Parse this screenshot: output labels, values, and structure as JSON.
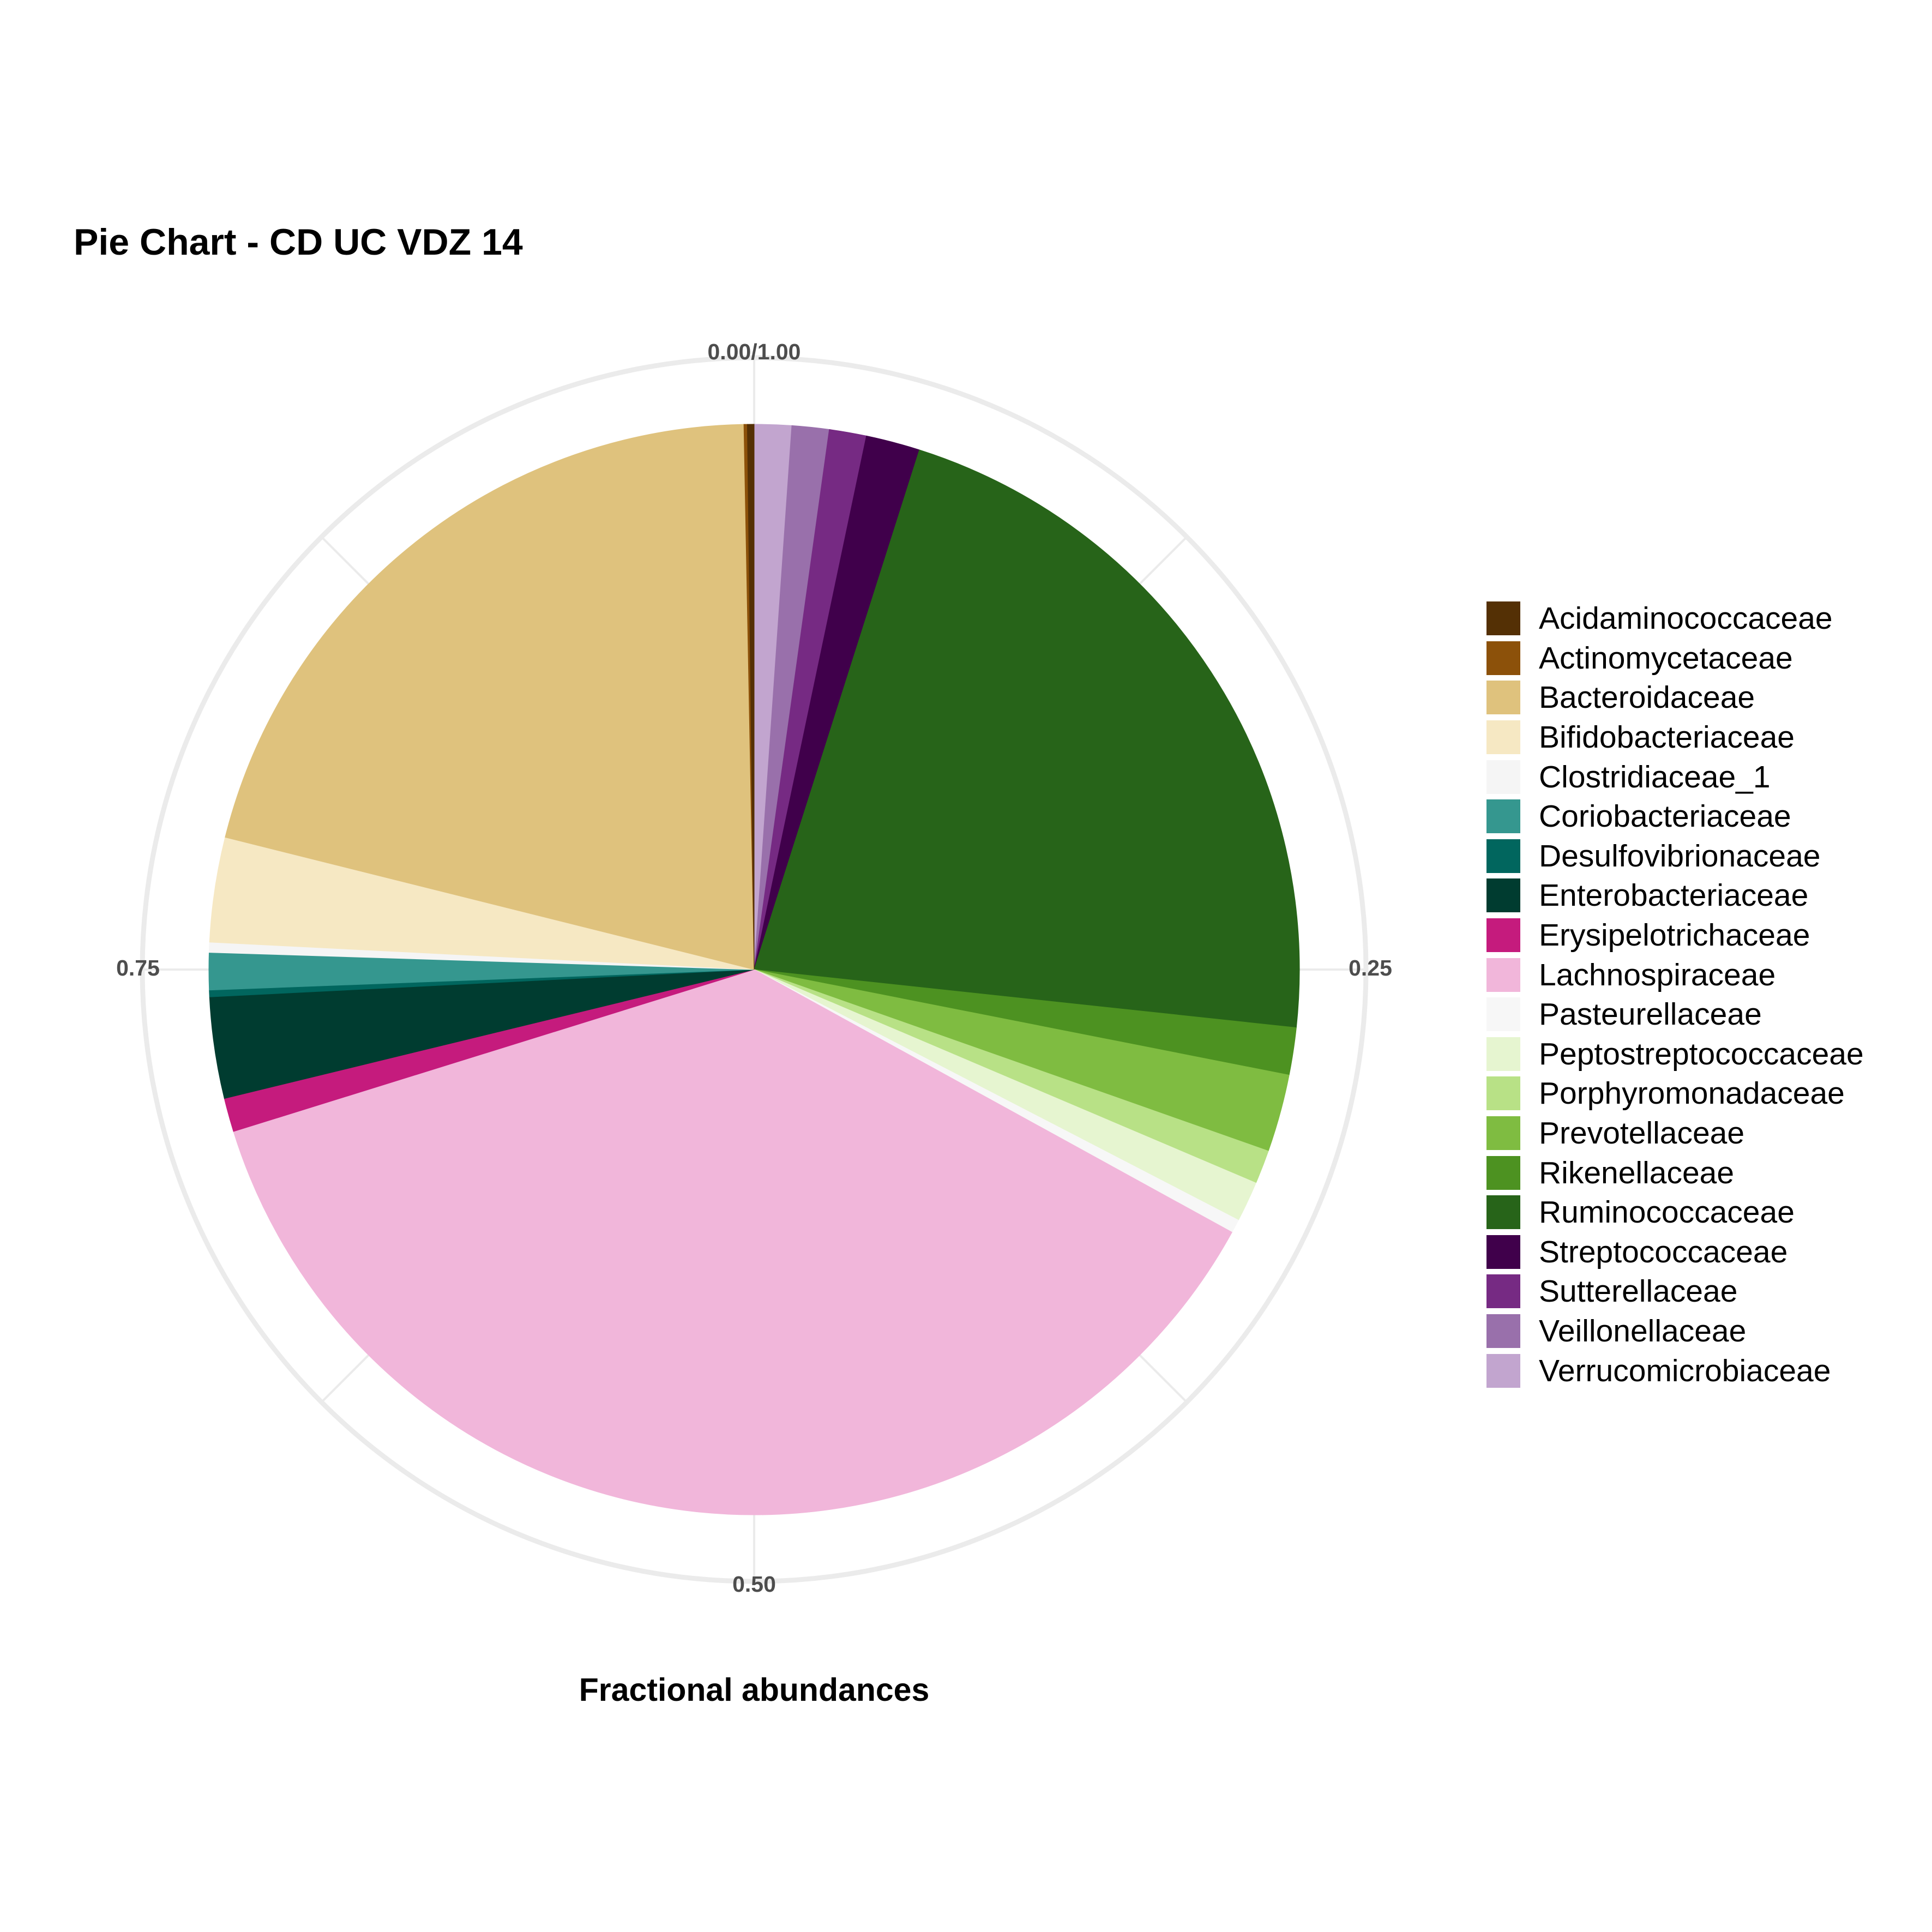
{
  "chart_data": {
    "type": "pie",
    "title": "Pie Chart - CD UC VDZ 14",
    "xlabel": "Fractional abundances",
    "ticks": [
      {
        "value": 0,
        "label": "0.00/1.00"
      },
      {
        "value": 0.25,
        "label": "0.25"
      },
      {
        "value": 0.5,
        "label": "0.50"
      },
      {
        "value": 0.75,
        "label": "0.75"
      }
    ],
    "legend_position": "right",
    "grid": true,
    "slices": [
      {
        "name": "Verrucomicrobiaceae",
        "value": 0.011,
        "color": "#c2a5cf"
      },
      {
        "name": "Veillonellaceae",
        "value": 0.011,
        "color": "#9970ab"
      },
      {
        "name": "Sutterellaceae",
        "value": 0.011,
        "color": "#762a83"
      },
      {
        "name": "Streptococcaceae",
        "value": 0.016,
        "color": "#40004b"
      },
      {
        "name": "Ruminococcaceae",
        "value": 0.218,
        "color": "#276419"
      },
      {
        "name": "Rikenellaceae",
        "value": 0.014,
        "color": "#4d9221"
      },
      {
        "name": "Prevotellaceae",
        "value": 0.023,
        "color": "#7fbc41"
      },
      {
        "name": "Porphyromonadaceae",
        "value": 0.01,
        "color": "#b8e186"
      },
      {
        "name": "Peptostreptococcaceae",
        "value": 0.012,
        "color": "#e6f5d0"
      },
      {
        "name": "Pasteurellaceae",
        "value": 0.004,
        "color": "#f7f7f7"
      },
      {
        "name": "Lachnospiraceae",
        "value": 0.372,
        "color": "#f1b6da"
      },
      {
        "name": "Erysipelotrichaceae",
        "value": 0.01,
        "color": "#c51b7d"
      },
      {
        "name": "Enterobacteriaceae",
        "value": 0.03,
        "color": "#003c30"
      },
      {
        "name": "Desulfovibrionaceae",
        "value": 0.002,
        "color": "#01665e"
      },
      {
        "name": "Coriobacteriaceae",
        "value": 0.011,
        "color": "#35978f"
      },
      {
        "name": "Clostridiaceae_1",
        "value": 0.003,
        "color": "#f5f5f5"
      },
      {
        "name": "Bifidobacteriaceae",
        "value": 0.031,
        "color": "#f6e8c3"
      },
      {
        "name": "Bacteroidaceae",
        "value": 0.208,
        "color": "#dfc27d"
      },
      {
        "name": "Actinomycetaceae",
        "value": 0.001,
        "color": "#8c510a"
      },
      {
        "name": "Acidaminococcaceae",
        "value": 0.002,
        "color": "#543005"
      }
    ],
    "legend": [
      {
        "name": "Acidaminococcaceae",
        "color": "#543005"
      },
      {
        "name": "Actinomycetaceae",
        "color": "#8c510a"
      },
      {
        "name": "Bacteroidaceae",
        "color": "#dfc27d"
      },
      {
        "name": "Bifidobacteriaceae",
        "color": "#f6e8c3"
      },
      {
        "name": "Clostridiaceae_1",
        "color": "#f5f5f5"
      },
      {
        "name": "Coriobacteriaceae",
        "color": "#35978f"
      },
      {
        "name": "Desulfovibrionaceae",
        "color": "#01665e"
      },
      {
        "name": "Enterobacteriaceae",
        "color": "#003c30"
      },
      {
        "name": "Erysipelotrichaceae",
        "color": "#c51b7d"
      },
      {
        "name": "Lachnospiraceae",
        "color": "#f1b6da"
      },
      {
        "name": "Pasteurellaceae",
        "color": "#f7f7f7"
      },
      {
        "name": "Peptostreptococcaceae",
        "color": "#e6f5d0"
      },
      {
        "name": "Porphyromonadaceae",
        "color": "#b8e186"
      },
      {
        "name": "Prevotellaceae",
        "color": "#7fbc41"
      },
      {
        "name": "Rikenellaceae",
        "color": "#4d9221"
      },
      {
        "name": "Ruminococcaceae",
        "color": "#276419"
      },
      {
        "name": "Streptococcaceae",
        "color": "#40004b"
      },
      {
        "name": "Sutterellaceae",
        "color": "#762a83"
      },
      {
        "name": "Veillonellaceae",
        "color": "#9970ab"
      },
      {
        "name": "Verrucomicrobiaceae",
        "color": "#c2a5cf"
      }
    ]
  }
}
